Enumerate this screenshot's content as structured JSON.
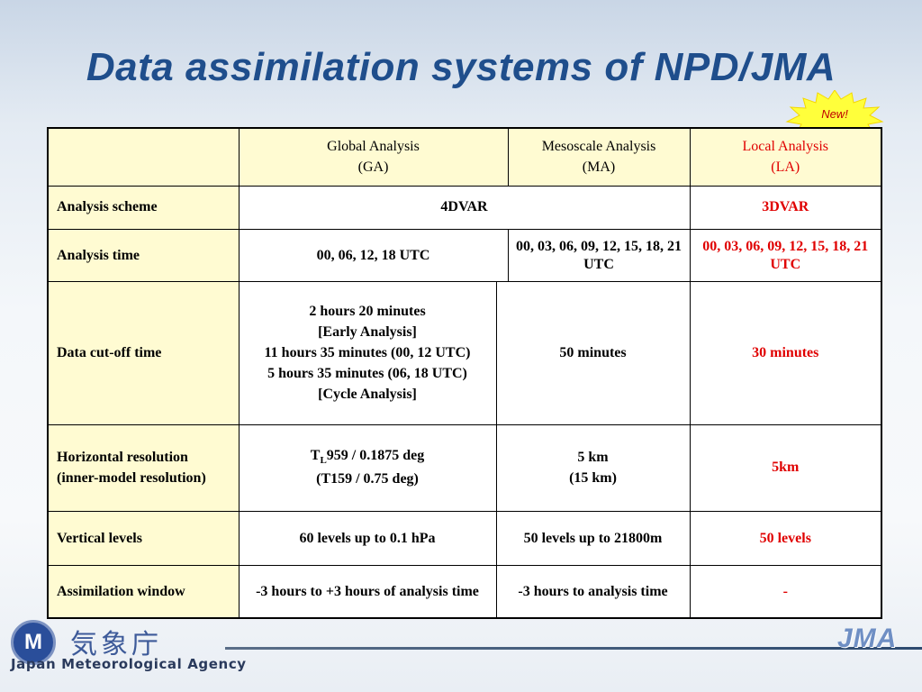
{
  "title": "Data assimilation systems of NPD/JMA",
  "badge": "New!",
  "columns": {
    "ga_line1": "Global Analysis",
    "ga_line2": "(GA)",
    "ma_line1": "Mesoscale Analysis",
    "ma_line2": "(MA)",
    "la_line1": "Local Analysis",
    "la_line2": "(LA)"
  },
  "rows": {
    "scheme": {
      "label": "Analysis scheme",
      "ga_ma": "4DVAR",
      "la": "3DVAR"
    },
    "time": {
      "label": "Analysis time",
      "ga": "00, 06, 12, 18 UTC",
      "ma": "00, 03, 06, 09, 12, 15, 18, 21 UTC",
      "la": "00, 03, 06, 09, 12, 15, 18, 21 UTC"
    },
    "cutoff": {
      "label": "Data cut-off time",
      "ga_lines": [
        "2 hours 20 minutes",
        "[Early Analysis]",
        "11 hours 35 minutes (00, 12 UTC)",
        "5 hours 35 minutes (06, 18 UTC)",
        "[Cycle Analysis]"
      ],
      "ma": "50 minutes",
      "la": "30 minutes"
    },
    "resolution": {
      "label_line1": "Horizontal resolution",
      "label_line2": "(inner-model resolution)",
      "ga_line1_prefix": "T",
      "ga_line1_sub": "L",
      "ga_line1_rest": "959 / 0.1875 deg",
      "ga_line2": "(T159 / 0.75 deg)",
      "ma_line1": "5 km",
      "ma_line2": "(15 km)",
      "la": "5km"
    },
    "vertical": {
      "label": "Vertical levels",
      "ga": "60 levels up to 0.1 hPa",
      "ma": "50 levels up to 21800m",
      "la": "50 levels"
    },
    "window": {
      "label": "Assimilation window",
      "ga": "-3 hours to +3 hours of analysis time",
      "ma": "-3 hours to analysis time",
      "la": "-"
    }
  },
  "footer": {
    "logo_letter": "M",
    "logo_kanji": "気象庁",
    "logo_english": "Japan Meteorological Agency",
    "jma_mark": "JMA"
  },
  "colors": {
    "title": "#1f4e8c",
    "highlight": "#e00000",
    "header_fill": "#fffbd2"
  }
}
